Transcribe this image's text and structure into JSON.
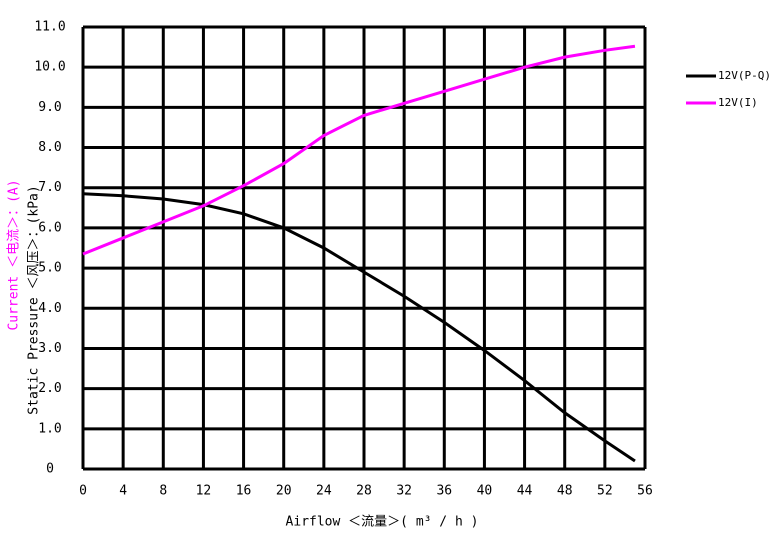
{
  "chart_data": {
    "type": "line",
    "x_label": "Airflow ＜流量＞( m³ / h )",
    "y_label": "Static Pressure ＜风压＞：(kPa)",
    "y2_label": "Current ＜电流＞：(A)",
    "x": [
      0,
      4,
      8,
      12,
      16,
      20,
      24,
      28,
      32,
      36,
      40,
      44,
      48,
      52,
      55
    ],
    "series": [
      {
        "name": "12V(P-Q)",
        "color": "#000000",
        "values": [
          6.85,
          6.8,
          6.72,
          6.58,
          6.35,
          6.0,
          5.5,
          4.9,
          4.3,
          3.65,
          2.95,
          2.2,
          1.4,
          0.7,
          0.2
        ]
      },
      {
        "name": "12V(I)",
        "color": "#ff00ff",
        "values": [
          5.35,
          5.75,
          6.15,
          6.55,
          7.05,
          7.6,
          8.3,
          8.8,
          9.1,
          9.4,
          9.7,
          10.0,
          10.25,
          10.42,
          10.52
        ]
      }
    ],
    "xlim": [
      0,
      56
    ],
    "xticks": [
      0,
      4,
      8,
      12,
      16,
      20,
      24,
      28,
      32,
      36,
      40,
      44,
      48,
      52,
      56
    ],
    "ylim": [
      0,
      11
    ],
    "yticks": [
      0,
      {
        "value": 1,
        "label": "1.0"
      },
      {
        "value": 2,
        "label": "2.0"
      },
      {
        "value": 3,
        "label": "3.0"
      },
      {
        "value": 4,
        "label": "4.0"
      },
      {
        "value": 5,
        "label": "5.0"
      },
      {
        "value": 6,
        "label": "6.0"
      },
      {
        "value": 7,
        "label": "7.0"
      },
      {
        "value": 8,
        "label": "8.0"
      },
      {
        "value": 9,
        "label": "9.0"
      },
      {
        "value": 10,
        "label": "10.0"
      },
      {
        "value": 11,
        "label": "11.0"
      }
    ],
    "grid": true,
    "legend": "right"
  }
}
